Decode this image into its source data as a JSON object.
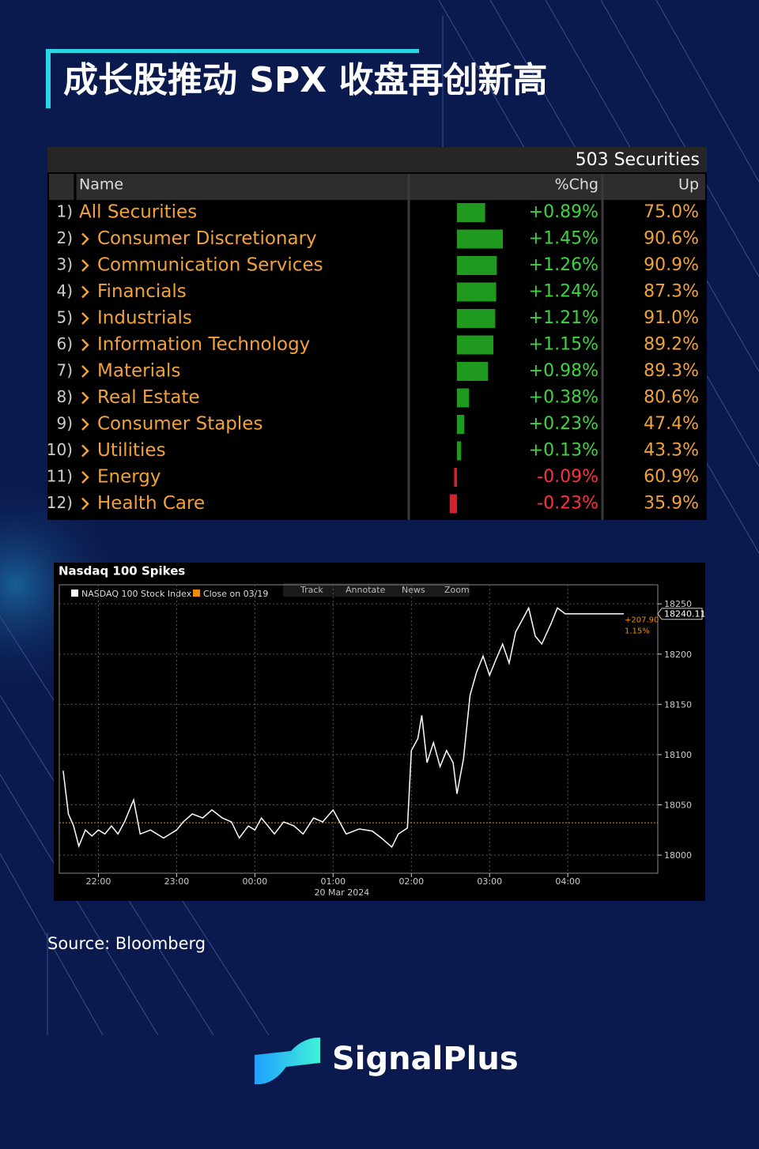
{
  "header": {
    "title": "成长股推动 SPX 收盘再创新高"
  },
  "table": {
    "count_label": "503 Securities",
    "columns": [
      "Name",
      "%Chg",
      "Up"
    ],
    "rows": [
      {
        "num": "1)",
        "name": "All Securities",
        "chg": 0.89,
        "chg_label": "+0.89%",
        "up": "75.0%"
      },
      {
        "num": "2)",
        "name": "Consumer Discretionary",
        "chg": 1.45,
        "chg_label": "+1.45%",
        "up": "90.6%"
      },
      {
        "num": "3)",
        "name": "Communication Services",
        "chg": 1.26,
        "chg_label": "+1.26%",
        "up": "90.9%"
      },
      {
        "num": "4)",
        "name": "Financials",
        "chg": 1.24,
        "chg_label": "+1.24%",
        "up": "87.3%"
      },
      {
        "num": "5)",
        "name": "Industrials",
        "chg": 1.21,
        "chg_label": "+1.21%",
        "up": "91.0%"
      },
      {
        "num": "6)",
        "name": "Information Technology",
        "chg": 1.15,
        "chg_label": "+1.15%",
        "up": "89.2%"
      },
      {
        "num": "7)",
        "name": "Materials",
        "chg": 0.98,
        "chg_label": "+0.98%",
        "up": "89.3%"
      },
      {
        "num": "8)",
        "name": "Real Estate",
        "chg": 0.38,
        "chg_label": "+0.38%",
        "up": "80.6%"
      },
      {
        "num": "9)",
        "name": "Consumer Staples",
        "chg": 0.23,
        "chg_label": "+0.23%",
        "up": "47.4%"
      },
      {
        "num": "10)",
        "name": "Utilities",
        "chg": 0.13,
        "chg_label": "+0.13%",
        "up": "43.3%"
      },
      {
        "num": "11)",
        "name": "Energy",
        "chg": -0.09,
        "chg_label": "-0.09%",
        "up": "60.9%"
      },
      {
        "num": "12)",
        "name": "Health Care",
        "chg": -0.23,
        "chg_label": "-0.23%",
        "up": "35.9%"
      }
    ]
  },
  "chart_data": {
    "type": "line",
    "title": "Nasdaq 100 Spikes",
    "toolbar": [
      "Track",
      "Annotate",
      "News",
      "Zoom"
    ],
    "x": [
      "21:33",
      "21:37",
      "21:41",
      "21:45",
      "21:50",
      "21:55",
      "22:00",
      "22:05",
      "22:10",
      "22:15",
      "22:20",
      "22:27",
      "22:32",
      "22:40",
      "22:50",
      "23:00",
      "23:05",
      "23:12",
      "23:20",
      "23:27",
      "23:35",
      "23:42",
      "23:48",
      "23:55",
      "00:00",
      "00:05",
      "00:10",
      "00:15",
      "00:22",
      "00:30",
      "00:37",
      "00:45",
      "00:52",
      "01:00",
      "01:05",
      "01:10",
      "01:20",
      "01:30",
      "01:37",
      "01:45",
      "01:50",
      "01:57",
      "02:00",
      "02:05",
      "02:08",
      "02:12",
      "02:17",
      "02:22",
      "02:27",
      "02:32",
      "02:35",
      "02:40",
      "02:45",
      "02:50",
      "02:55",
      "03:00",
      "03:05",
      "03:10",
      "03:15",
      "03:20",
      "03:25",
      "03:30",
      "03:35",
      "03:40",
      "03:47",
      "03:52",
      "03:58",
      "04:43"
    ],
    "series": [
      {
        "name": "NASDAQ 100 Stock Index",
        "color": "#ffffff",
        "values": [
          18084,
          18041,
          18029,
          18009,
          18025,
          18019,
          18025,
          18021,
          18029,
          18021,
          18033,
          18055,
          18021,
          18025,
          18017,
          18025,
          18033,
          18041,
          18037,
          18045,
          18037,
          18033,
          18017,
          18029,
          18025,
          18037,
          18029,
          18021,
          18033,
          18029,
          18021,
          18037,
          18033,
          18045,
          18033,
          18021,
          18026,
          18024,
          18017,
          18008,
          18021,
          18027,
          18104,
          18116,
          18139,
          18092,
          18112,
          18088,
          18104,
          18092,
          18061,
          18096,
          18159,
          18182,
          18198,
          18179,
          18195,
          18210,
          18191,
          18222,
          18234,
          18246,
          18218,
          18210,
          18230,
          18246,
          18240.11,
          18240.11
        ]
      }
    ],
    "reference_line": {
      "name": "Close on 03/19",
      "value": 18032.21,
      "color": "#f08c00"
    },
    "last_price": {
      "value": 18240.11,
      "label": "18240.11"
    },
    "change_label": "+207.90",
    "change_pct_label": "1.15%",
    "xlim": [
      "21:30",
      "05:09"
    ],
    "xticks": [
      "22:00",
      "23:00",
      "00:00",
      "01:00",
      "02:00",
      "03:00",
      "04:00"
    ],
    "date_label": "20 Mar 2024",
    "ylim": [
      17982,
      18269
    ],
    "yticks": [
      18000,
      18050,
      18100,
      18150,
      18200,
      18250
    ],
    "grid": true
  },
  "footer": {
    "source": "Source: Bloomberg",
    "brand": "SignalPlus"
  }
}
